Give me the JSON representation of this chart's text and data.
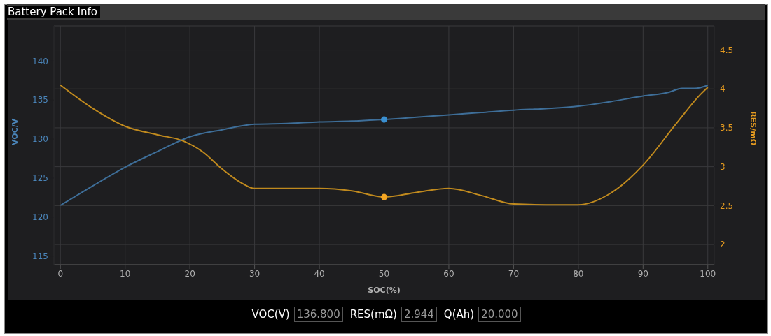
{
  "chart_data": {
    "type": "line",
    "title": "Battery Pack Info",
    "xlabel": "SOC(%)",
    "ylabel": "VOC/V",
    "y2label": "RES/mΩ",
    "xlim": [
      -1,
      101
    ],
    "xticks": [
      0,
      10,
      20,
      30,
      40,
      50,
      60,
      70,
      80,
      90,
      100
    ],
    "ylim": [
      113.9,
      144.5
    ],
    "yticks": [
      115,
      120,
      125,
      130,
      135,
      140
    ],
    "y2lim": [
      1.74,
      4.81
    ],
    "y2ticks": [
      2,
      2.5,
      3,
      3.5,
      4,
      4.5
    ],
    "grid": true,
    "marker": "none",
    "line_style": "solid",
    "series": [
      {
        "color": "#3e6e98",
        "x": [
          0,
          5,
          10,
          15,
          20,
          25,
          30,
          35,
          40,
          45,
          50,
          55,
          60,
          65,
          70,
          75,
          80,
          85,
          90,
          94,
          96,
          98,
          100
        ],
        "values": [
          121.5,
          124,
          126.4,
          128.4,
          130.3,
          131.2,
          131.9,
          132,
          132.2,
          132.3,
          132.5,
          132.8,
          133.1,
          133.4,
          133.7,
          133.9,
          134.2,
          134.8,
          135.5,
          136,
          136.5,
          136.5,
          136.9
        ]
      },
      {
        "color": "#c08a1e",
        "axis": "y2",
        "x": [
          0,
          5,
          10,
          15,
          19,
          22,
          25,
          28,
          30,
          35,
          40,
          45,
          50,
          55,
          60,
          65,
          70,
          75,
          80,
          85,
          90,
          95,
          99,
          100
        ],
        "values": [
          4.05,
          3.75,
          3.52,
          3.41,
          3.33,
          3.19,
          2.97,
          2.79,
          2.72,
          2.72,
          2.72,
          2.69,
          2.61,
          2.67,
          2.72,
          2.63,
          2.52,
          2.51,
          2.51,
          2.66,
          3.02,
          3.54,
          3.94,
          4.02
        ]
      },
      {
        "type": "scatter",
        "color": "#3a8fd0",
        "marker": "circle",
        "x": [
          50
        ],
        "values": [
          132.5
        ]
      },
      {
        "type": "scatter",
        "color": "#f5a623",
        "marker": "circle",
        "axis": "y2",
        "x": [
          50
        ],
        "values": [
          2.61
        ]
      }
    ],
    "annotations": [
      "VOC(V)",
      "136.800",
      "RES(mΩ)",
      "2.944",
      "Q(Ah)",
      "20.000"
    ]
  }
}
